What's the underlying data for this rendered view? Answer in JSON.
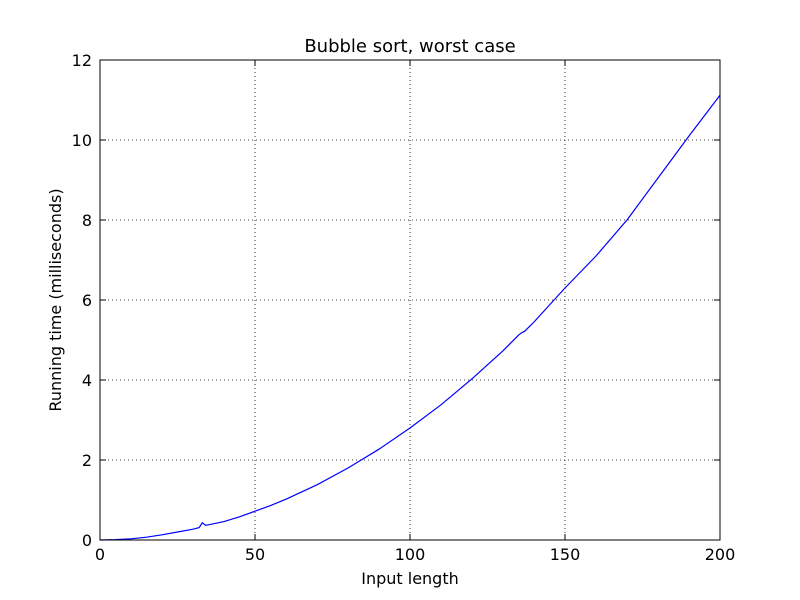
{
  "chart_data": {
    "type": "line",
    "title": "Bubble sort, worst case",
    "xlabel": "Input length",
    "ylabel": "Running time (milliseconds)",
    "xlim": [
      0,
      200
    ],
    "ylim": [
      0,
      12
    ],
    "xticks": [
      0,
      50,
      100,
      150,
      200
    ],
    "yticks": [
      0,
      2,
      4,
      6,
      8,
      10,
      12
    ],
    "grid": true,
    "series": [
      {
        "color": "#0000ff",
        "x": [
          0,
          5,
          10,
          15,
          20,
          25,
          30,
          32,
          33,
          34,
          35,
          40,
          45,
          50,
          55,
          60,
          70,
          80,
          90,
          100,
          110,
          120,
          130,
          135,
          136,
          137,
          140,
          150,
          160,
          170,
          180,
          190,
          200
        ],
        "y": [
          0,
          0.01,
          0.03,
          0.07,
          0.13,
          0.2,
          0.27,
          0.31,
          0.43,
          0.37,
          0.38,
          0.46,
          0.58,
          0.72,
          0.86,
          1.02,
          1.38,
          1.8,
          2.27,
          2.8,
          3.38,
          4.03,
          4.73,
          5.12,
          5.18,
          5.22,
          5.45,
          6.3,
          7.1,
          8.0,
          9.05,
          10.1,
          11.12
        ]
      }
    ]
  }
}
